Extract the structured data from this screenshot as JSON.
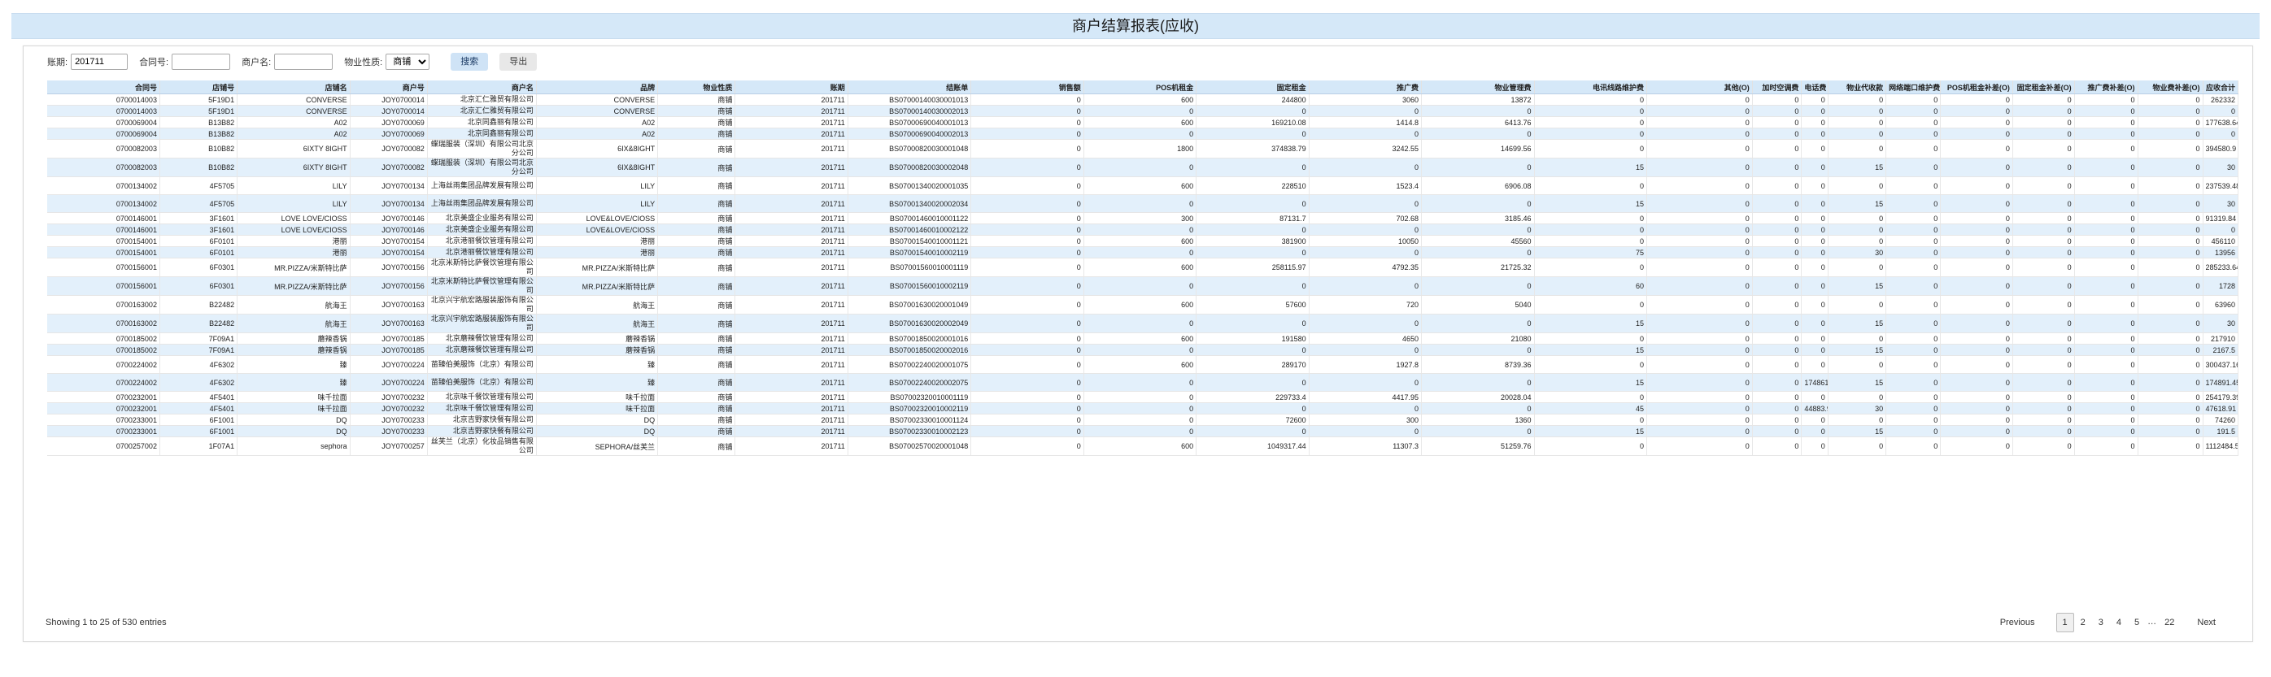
{
  "page_title": "商户结算报表(应收)",
  "filters": {
    "period_label": "账期:",
    "period_value": "201711",
    "contract_label": "合同号:",
    "contract_value": "",
    "merchant_label": "商户名:",
    "merchant_value": "",
    "property_label": "物业性质:",
    "property_value": "商铺",
    "search_label": "搜索",
    "export_label": "导出"
  },
  "table": {
    "columns": [
      "合同号",
      "店铺号",
      "店铺名",
      "商户号",
      "商户名",
      "品牌",
      "物业性质",
      "账期",
      "结账单",
      "销售额",
      "POS机租金",
      "固定租金",
      "推广费",
      "物业管理费",
      "电讯线路维护费",
      "其他(O)",
      "加时空调费",
      "电话费",
      "物业代收款",
      "网络端口维护费",
      "POS机租金补差(O)",
      "固定租金补差(O)",
      "推广费补差(O)",
      "物业费补差(O)",
      "应收合计"
    ],
    "rows": [
      [
        "0700014003",
        "5F19D1",
        "CONVERSE",
        "JOY0700014",
        "北京汇仁雅贸有限公司",
        "CONVERSE",
        "商铺",
        "201711",
        "BS07000140030001013",
        "0",
        "600",
        "244800",
        "3060",
        "13872",
        "0",
        "0",
        "0",
        "0",
        "0",
        "0",
        "0",
        "0",
        "0",
        "0",
        "262332"
      ],
      [
        "0700014003",
        "5F19D1",
        "CONVERSE",
        "JOY0700014",
        "北京汇仁雅贸有限公司",
        "CONVERSE",
        "商铺",
        "201711",
        "BS07000140030002013",
        "0",
        "0",
        "0",
        "0",
        "0",
        "0",
        "0",
        "0",
        "0",
        "0",
        "0",
        "0",
        "0",
        "0",
        "0",
        "0"
      ],
      [
        "0700069004",
        "B13B82",
        "A02",
        "JOY0700069",
        "北京同鑫丽有限公司",
        "A02",
        "商铺",
        "201711",
        "BS07000690040001013",
        "0",
        "600",
        "169210.08",
        "1414.8",
        "6413.76",
        "0",
        "0",
        "0",
        "0",
        "0",
        "0",
        "0",
        "0",
        "0",
        "0",
        "177638.64"
      ],
      [
        "0700069004",
        "B13B82",
        "A02",
        "JOY0700069",
        "北京同鑫丽有限公司",
        "A02",
        "商铺",
        "201711",
        "BS07000690040002013",
        "0",
        "0",
        "0",
        "0",
        "0",
        "0",
        "0",
        "0",
        "0",
        "0",
        "0",
        "0",
        "0",
        "0",
        "0",
        "0"
      ],
      [
        "0700082003",
        "B10B82",
        "6IXTY 8IGHT",
        "JOY0700082",
        "蝶瑞服装（深圳）有限公司北京分公司",
        "6IX&8IGHT",
        "商铺",
        "201711",
        "BS07000820030001048",
        "0",
        "1800",
        "374838.79",
        "3242.55",
        "14699.56",
        "0",
        "0",
        "0",
        "0",
        "0",
        "0",
        "0",
        "0",
        "0",
        "0",
        "394580.9"
      ],
      [
        "0700082003",
        "B10B82",
        "6IXTY 8IGHT",
        "JOY0700082",
        "蝶瑞服装（深圳）有限公司北京分公司",
        "6IX&8IGHT",
        "商铺",
        "201711",
        "BS07000820030002048",
        "0",
        "0",
        "0",
        "0",
        "0",
        "15",
        "0",
        "0",
        "0",
        "15",
        "0",
        "0",
        "0",
        "0",
        "0",
        "30"
      ],
      [
        "0700134002",
        "4F5705",
        "LILY",
        "JOY0700134",
        "上海丝雨集团品牌发展有限公司",
        "LILY",
        "商铺",
        "201711",
        "BS07001340020001035",
        "0",
        "600",
        "228510",
        "1523.4",
        "6906.08",
        "0",
        "0",
        "0",
        "0",
        "0",
        "0",
        "0",
        "0",
        "0",
        "0",
        "237539.48"
      ],
      [
        "0700134002",
        "4F5705",
        "LILY",
        "JOY0700134",
        "上海丝雨集团品牌发展有限公司",
        "LILY",
        "商铺",
        "201711",
        "BS07001340020002034",
        "0",
        "0",
        "0",
        "0",
        "0",
        "15",
        "0",
        "0",
        "0",
        "15",
        "0",
        "0",
        "0",
        "0",
        "0",
        "30"
      ],
      [
        "0700146001",
        "3F1601",
        "LOVE LOVE/CIOSS",
        "JOY0700146",
        "北京美盛企业服务有限公司",
        "LOVE&LOVE/CIOSS",
        "商铺",
        "201711",
        "BS07001460010001122",
        "0",
        "300",
        "87131.7",
        "702.68",
        "3185.46",
        "0",
        "0",
        "0",
        "0",
        "0",
        "0",
        "0",
        "0",
        "0",
        "0",
        "91319.84"
      ],
      [
        "0700146001",
        "3F1601",
        "LOVE LOVE/CIOSS",
        "JOY0700146",
        "北京美盛企业服务有限公司",
        "LOVE&LOVE/CIOSS",
        "商铺",
        "201711",
        "BS07001460010002122",
        "0",
        "0",
        "0",
        "0",
        "0",
        "0",
        "0",
        "0",
        "0",
        "0",
        "0",
        "0",
        "0",
        "0",
        "0",
        "0"
      ],
      [
        "0700154001",
        "6F0101",
        "港丽",
        "JOY0700154",
        "北京港丽餐饮管理有限公司",
        "港丽",
        "商铺",
        "201711",
        "BS07001540010001121",
        "0",
        "600",
        "381900",
        "10050",
        "45560",
        "0",
        "0",
        "0",
        "0",
        "0",
        "0",
        "0",
        "0",
        "0",
        "0",
        "456110"
      ],
      [
        "0700154001",
        "6F0101",
        "港丽",
        "JOY0700154",
        "北京港丽餐饮管理有限公司",
        "港丽",
        "商铺",
        "201711",
        "BS07001540010002119",
        "0",
        "0",
        "0",
        "0",
        "0",
        "75",
        "0",
        "0",
        "0",
        "30",
        "0",
        "0",
        "0",
        "0",
        "0",
        "13956"
      ],
      [
        "0700156001",
        "6F0301",
        "MR.PIZZA/米斯特比萨",
        "JOY0700156",
        "北京米斯特比萨餐饮管理有限公司",
        "MR.PIZZA/米斯特比萨",
        "商铺",
        "201711",
        "BS07001560010001119",
        "0",
        "600",
        "258115.97",
        "4792.35",
        "21725.32",
        "0",
        "0",
        "0",
        "0",
        "0",
        "0",
        "0",
        "0",
        "0",
        "0",
        "285233.64"
      ],
      [
        "0700156001",
        "6F0301",
        "MR.PIZZA/米斯特比萨",
        "JOY0700156",
        "北京米斯特比萨餐饮管理有限公司",
        "MR.PIZZA/米斯特比萨",
        "商铺",
        "201711",
        "BS07001560010002119",
        "0",
        "0",
        "0",
        "0",
        "0",
        "60",
        "0",
        "0",
        "0",
        "15",
        "0",
        "0",
        "0",
        "0",
        "0",
        "1728"
      ],
      [
        "0700163002",
        "B22482",
        "航海王",
        "JOY0700163",
        "北京兴宇航宏路服装服饰有限公司",
        "航海王",
        "商铺",
        "201711",
        "BS07001630020001049",
        "0",
        "600",
        "57600",
        "720",
        "5040",
        "0",
        "0",
        "0",
        "0",
        "0",
        "0",
        "0",
        "0",
        "0",
        "0",
        "63960"
      ],
      [
        "0700163002",
        "B22482",
        "航海王",
        "JOY0700163",
        "北京兴宇航宏路服装服饰有限公司",
        "航海王",
        "商铺",
        "201711",
        "BS07001630020002049",
        "0",
        "0",
        "0",
        "0",
        "0",
        "15",
        "0",
        "0",
        "0",
        "15",
        "0",
        "0",
        "0",
        "0",
        "0",
        "30"
      ],
      [
        "0700185002",
        "7F09A1",
        "蘑辣香锅",
        "JOY0700185",
        "北京蘑辣餐饮管理有限公司",
        "蘑辣香锅",
        "商铺",
        "201711",
        "BS07001850020001016",
        "0",
        "600",
        "191580",
        "4650",
        "21080",
        "0",
        "0",
        "0",
        "0",
        "0",
        "0",
        "0",
        "0",
        "0",
        "0",
        "217910"
      ],
      [
        "0700185002",
        "7F09A1",
        "蘑辣香锅",
        "JOY0700185",
        "北京蘑辣餐饮管理有限公司",
        "蘑辣香锅",
        "商铺",
        "201711",
        "BS07001850020002016",
        "0",
        "0",
        "0",
        "0",
        "0",
        "15",
        "0",
        "0",
        "0",
        "15",
        "0",
        "0",
        "0",
        "0",
        "0",
        "2167.5"
      ],
      [
        "0700224002",
        "4F6302",
        "臻",
        "JOY0700224",
        "苗臻伯美服饰（北京）有限公司",
        "臻",
        "商铺",
        "201711",
        "BS07002240020001075",
        "0",
        "600",
        "289170",
        "1927.8",
        "8739.36",
        "0",
        "0",
        "0",
        "0",
        "0",
        "0",
        "0",
        "0",
        "0",
        "0",
        "300437.16"
      ],
      [
        "0700224002",
        "4F6302",
        "臻",
        "JOY0700224",
        "苗臻伯美服饰（北京）有限公司",
        "臻",
        "商铺",
        "201711",
        "BS07002240020002075",
        "0",
        "0",
        "0",
        "0",
        "0",
        "15",
        "0",
        "0",
        "174861.45",
        "15",
        "0",
        "0",
        "0",
        "0",
        "0",
        "174891.45"
      ],
      [
        "0700232001",
        "4F5401",
        "味千拉面",
        "JOY0700232",
        "北京味千餐饮管理有限公司",
        "味千拉面",
        "商铺",
        "201711",
        "BS07002320010001119",
        "0",
        "0",
        "229733.4",
        "4417.95",
        "20028.04",
        "0",
        "0",
        "0",
        "0",
        "0",
        "0",
        "0",
        "0",
        "0",
        "0",
        "254179.39"
      ],
      [
        "0700232001",
        "4F5401",
        "味千拉面",
        "JOY0700232",
        "北京味千餐饮管理有限公司",
        "味千拉面",
        "商铺",
        "201711",
        "BS07002320010002119",
        "0",
        "0",
        "0",
        "0",
        "0",
        "45",
        "0",
        "0",
        "44883.91",
        "30",
        "0",
        "0",
        "0",
        "0",
        "0",
        "47618.91"
      ],
      [
        "0700233001",
        "6F1001",
        "DQ",
        "JOY0700233",
        "北京吉野家快餐有限公司",
        "DQ",
        "商铺",
        "201711",
        "BS07002330010001124",
        "0",
        "0",
        "72600",
        "300",
        "1360",
        "0",
        "0",
        "0",
        "0",
        "0",
        "0",
        "0",
        "0",
        "0",
        "0",
        "74260"
      ],
      [
        "0700233001",
        "6F1001",
        "DQ",
        "JOY0700233",
        "北京吉野家快餐有限公司",
        "DQ",
        "商铺",
        "201711",
        "BS07002330010002123",
        "0",
        "0",
        "0",
        "0",
        "0",
        "15",
        "0",
        "0",
        "0",
        "15",
        "0",
        "0",
        "0",
        "0",
        "0",
        "191.5"
      ],
      [
        "0700257002",
        "1F07A1",
        "sephora",
        "JOY0700257",
        "丝芙兰（北京）化妆品销售有限公司",
        "SEPHORA/丝芙兰",
        "商铺",
        "201711",
        "BS07002570020001048",
        "0",
        "600",
        "1049317.44",
        "11307.3",
        "51259.76",
        "0",
        "0",
        "0",
        "0",
        "0",
        "0",
        "0",
        "0",
        "0",
        "0",
        "1112484.5"
      ]
    ]
  },
  "footer": {
    "info": "Showing 1 to 25 of 530 entries",
    "pagination": {
      "previous": "Previous",
      "pages": [
        "1",
        "2",
        "3",
        "4",
        "5"
      ],
      "ellipsis": "…",
      "last": "22",
      "next": "Next"
    }
  }
}
